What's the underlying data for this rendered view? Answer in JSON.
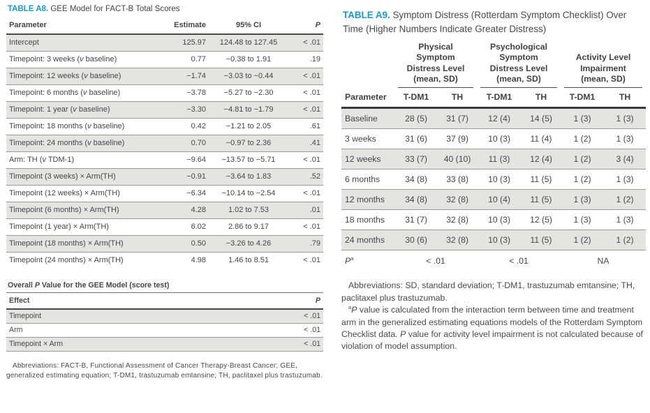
{
  "colors": {
    "accent_blue": "#1d97c9",
    "row_shade": "#e6e4e1",
    "text_dark": "#46454a"
  },
  "table_a8": {
    "label": "TABLE A8.",
    "title": "GEE Model for FACT-B Total Scores",
    "columns": [
      "Parameter",
      "Estimate",
      "95% CI",
      "P"
    ],
    "rows": [
      {
        "parameter": "Intercept",
        "estimate": "125.97",
        "ci": "124.48 to 127.45",
        "p": "< .01"
      },
      {
        "parameter": "Timepoint: 3 weeks (v baseline)",
        "estimate": "0.77",
        "ci": "−0.38 to 1.91",
        "p": ".19"
      },
      {
        "parameter": "Timepoint: 12 weeks (v baseline)",
        "estimate": "−1.74",
        "ci": "−3.03 to −0.44",
        "p": "< .01"
      },
      {
        "parameter": "Timepoint: 6 months (v baseline)",
        "estimate": "−3.78",
        "ci": "−5.27 to −2.30",
        "p": "< .01"
      },
      {
        "parameter": "Timepoint: 1 year (v baseline)",
        "estimate": "−3.30",
        "ci": "−4.81 to −1.79",
        "p": "< .01"
      },
      {
        "parameter": "Timepoint: 18 months (v baseline)",
        "estimate": "0.42",
        "ci": "−1.21 to 2.05",
        "p": ".61"
      },
      {
        "parameter": "Timepoint: 24 months (v baseline)",
        "estimate": "0.70",
        "ci": "−0.97 to 2.36",
        "p": ".41"
      },
      {
        "parameter": "Arm: TH (v TDM-1)",
        "estimate": "−9.64",
        "ci": "−13.57 to −5.71",
        "p": "< .01"
      },
      {
        "parameter": "Timepoint (3 weeks) × Arm(TH)",
        "estimate": "−0.91",
        "ci": "−3.64 to 1.83",
        "p": ".52"
      },
      {
        "parameter": "Timepoint (12 weeks) × Arm(TH)",
        "estimate": "−6.34",
        "ci": "−10.14 to −2.54",
        "p": "< .01"
      },
      {
        "parameter": "Timepoint (6 months) × Arm(TH)",
        "estimate": "4.28",
        "ci": "1.02 to 7.53",
        "p": ".01"
      },
      {
        "parameter": "Timepoint (1 year) × Arm(TH)",
        "estimate": "6.02",
        "ci": "2.86 to 9.17",
        "p": "< .01"
      },
      {
        "parameter": "Timepoint (18 months) × Arm(TH)",
        "estimate": "0.50",
        "ci": "−3.26 to 4.26",
        "p": ".79"
      },
      {
        "parameter": "Timepoint (24 months) × Arm(TH)",
        "estimate": "4.98",
        "ci": "1.46 to 8.51",
        "p": "< .01"
      }
    ],
    "footnote": "Abbreviations: FACT-B, Functional Assessment of Cancer Therapy-Breast Cancer; GEE, generalized estimating equation; T-DM1, trastuzumab emtansine; TH, paclitaxel plus trastuzumab."
  },
  "gee_overall": {
    "title": "Overall P Value for the GEE Model (score test)",
    "columns": [
      "Effect",
      "P"
    ],
    "rows": [
      {
        "effect": "Timepoint",
        "p": "< .01"
      },
      {
        "effect": "Arm",
        "p": "< .01"
      },
      {
        "effect": "Timepoint × Arm",
        "p": "< .01"
      }
    ]
  },
  "table_a9": {
    "label": "TABLE A9.",
    "title": "Symptom Distress (Rotterdam Symptom Checklist) Over Time (Higher Numbers Indicate Greater Distress)",
    "group_headers": [
      "Physical Symptom Distress Level (mean, SD)",
      "Psychological Symptom Distress Level (mean, SD)",
      "Activity Level Impairment (mean, SD)"
    ],
    "sub_headers": [
      "Parameter",
      "T-DM1",
      "TH",
      "T-DM1",
      "TH",
      "T-DM1",
      "TH"
    ],
    "rows": [
      {
        "parameter": "Baseline",
        "values": [
          "28 (5)",
          "31 (7)",
          "12 (4)",
          "14 (5)",
          "1 (3)",
          "1 (3)"
        ]
      },
      {
        "parameter": "3 weeks",
        "values": [
          "31 (6)",
          "37 (9)",
          "10 (3)",
          "11 (4)",
          "1 (2)",
          "1 (3)"
        ]
      },
      {
        "parameter": "12 weeks",
        "values": [
          "33 (7)",
          "40 (10)",
          "11 (3)",
          "12 (4)",
          "1 (2)",
          "3 (4)"
        ]
      },
      {
        "parameter": "6 months",
        "values": [
          "34 (8)",
          "33 (8)",
          "10 (3)",
          "11 (5)",
          "1 (2)",
          "1 (3)"
        ]
      },
      {
        "parameter": "12 months",
        "values": [
          "34 (8)",
          "32 (8)",
          "10 (4)",
          "11 (5)",
          "1 (3)",
          "1 (2)"
        ]
      },
      {
        "parameter": "18 months",
        "values": [
          "31 (7)",
          "32 (8)",
          "10 (3)",
          "12 (5)",
          "1 (3)",
          "1 (3)"
        ]
      },
      {
        "parameter": "24 months",
        "values": [
          "30 (6)",
          "32 (8)",
          "10 (3)",
          "11 (5)",
          "1 (2)",
          "1 (2)"
        ]
      }
    ],
    "p_row": {
      "label": "P",
      "label_sup": "a",
      "values": [
        "< .01",
        "< .01",
        "NA"
      ]
    },
    "footnotes": [
      {
        "sup": "",
        "text": "Abbreviations: SD, standard deviation; T-DM1, trastuzumab emtansine; TH, paclitaxel plus trastuzumab."
      },
      {
        "sup": "a",
        "text": "P value is calculated from the interaction term between time and treatment arm in the generalized estimating equations models of the Rotterdam Symptom Checklist data. P value for activity level impairment is not calculated because of violation of model assumption."
      }
    ]
  }
}
